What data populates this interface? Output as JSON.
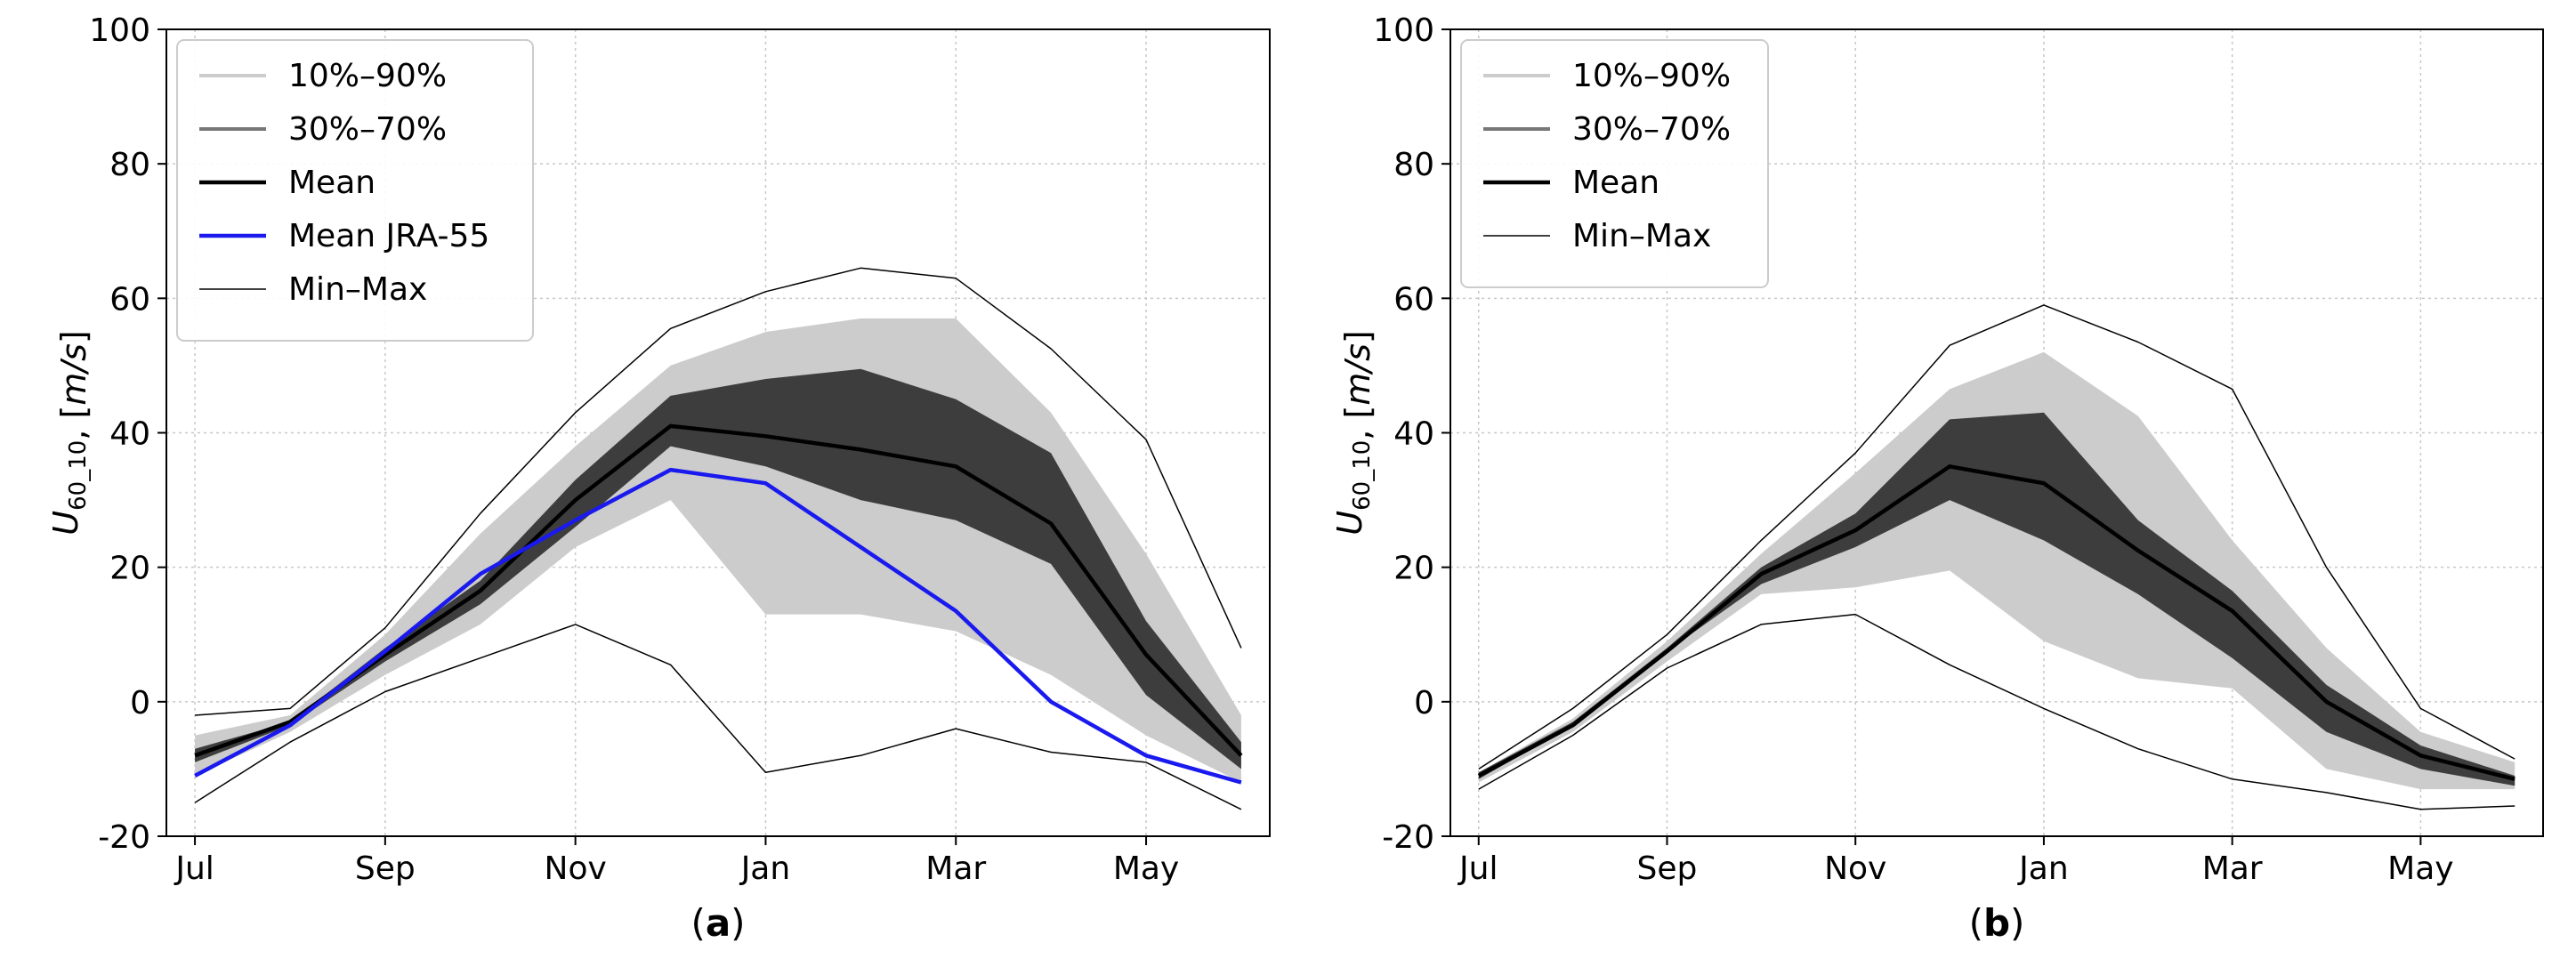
{
  "chart_data": [
    {
      "type": "line",
      "panel_label": "(a)",
      "panel_letter": "a",
      "ylabel_base": "U",
      "ylabel_sub": "60_10",
      "ylabel_unit": ", [m/s]",
      "xlabel": "",
      "ylim": [
        -20,
        100
      ],
      "yticks": [
        -20,
        0,
        20,
        40,
        60,
        80,
        100
      ],
      "xtick_labels": [
        "Jul",
        "Sep",
        "Nov",
        "Jan",
        "Mar",
        "May"
      ],
      "xtick_positions": [
        0,
        2,
        4,
        6,
        8,
        10
      ],
      "x": [
        0,
        1,
        2,
        3,
        4,
        5,
        6,
        7,
        8,
        9,
        10,
        11
      ],
      "grid": true,
      "legend_position": "top-left",
      "legend": [
        "10%–90%",
        "30%–70%",
        "Mean",
        "Mean JRA-55",
        "Min–Max"
      ],
      "series": [
        {
          "name": "Min–Max (max)",
          "values": [
            -2,
            -1,
            11,
            28,
            43,
            55.5,
            61,
            64.5,
            63,
            52.5,
            39,
            8
          ]
        },
        {
          "name": "Min–Max (min)",
          "values": [
            -15,
            -6,
            1.5,
            6.5,
            11.5,
            5.5,
            -10.5,
            -8,
            -4,
            -7.5,
            -9,
            -16
          ]
        },
        {
          "name": "10%–90% (upper)",
          "values": [
            -5,
            -2,
            10,
            25,
            38,
            50,
            55,
            57,
            57,
            43,
            22,
            -2
          ]
        },
        {
          "name": "10%–90% (lower)",
          "values": [
            -11,
            -4.5,
            4,
            11.5,
            23,
            30,
            13,
            13,
            10.5,
            4,
            -5,
            -12
          ]
        },
        {
          "name": "30%–70% (upper)",
          "values": [
            -7,
            -3,
            8,
            18,
            33,
            45.5,
            48,
            49.5,
            45,
            37,
            12,
            -6
          ]
        },
        {
          "name": "30%–70% (lower)",
          "values": [
            -9,
            -3.5,
            6,
            14.5,
            26,
            38,
            35,
            30,
            27,
            20.5,
            1,
            -10
          ]
        },
        {
          "name": "Mean",
          "values": [
            -8,
            -3,
            7,
            16.5,
            30,
            41,
            39.5,
            37.5,
            35,
            26.5,
            7,
            -8
          ]
        },
        {
          "name": "Mean JRA-55",
          "values": [
            -11,
            -3.5,
            7.5,
            19,
            27,
            34.5,
            32.5,
            23,
            13.5,
            0,
            -8,
            -12
          ]
        }
      ]
    },
    {
      "type": "line",
      "panel_label": "(b)",
      "panel_letter": "b",
      "ylabel_base": "U",
      "ylabel_sub": "60_10",
      "ylabel_unit": ", [m/s]",
      "xlabel": "",
      "ylim": [
        -20,
        100
      ],
      "yticks": [
        -20,
        0,
        20,
        40,
        60,
        80,
        100
      ],
      "xtick_labels": [
        "Jul",
        "Sep",
        "Nov",
        "Jan",
        "Mar",
        "May"
      ],
      "xtick_positions": [
        0,
        2,
        4,
        6,
        8,
        10
      ],
      "x": [
        0,
        1,
        2,
        3,
        4,
        5,
        6,
        7,
        8,
        9,
        10,
        11
      ],
      "grid": true,
      "legend_position": "top-left",
      "legend": [
        "10%–90%",
        "30%–70%",
        "Mean",
        "Min–Max"
      ],
      "series": [
        {
          "name": "Min–Max (max)",
          "values": [
            -10,
            -1,
            10,
            24,
            37,
            53,
            59,
            53.5,
            46.5,
            20,
            -1,
            -8.5
          ]
        },
        {
          "name": "Min–Max (min)",
          "values": [
            -13,
            -5,
            5,
            11.5,
            13,
            5.5,
            -1,
            -7,
            -11.5,
            -13.5,
            -16,
            -15.5
          ]
        },
        {
          "name": "10%–90% (upper)",
          "values": [
            -10.5,
            -2.5,
            9,
            22,
            34,
            46.5,
            52,
            42.5,
            24,
            8,
            -4.5,
            -9
          ]
        },
        {
          "name": "10%–90% (lower)",
          "values": [
            -12,
            -4.5,
            6,
            16,
            17,
            19.5,
            9,
            3.5,
            2,
            -10,
            -13,
            -13
          ]
        },
        {
          "name": "30%–70% (upper)",
          "values": [
            -10.5,
            -3,
            8,
            20,
            28,
            42,
            43,
            27,
            16.5,
            2.5,
            -6.5,
            -11
          ]
        },
        {
          "name": "30%–70% (lower)",
          "values": [
            -11.5,
            -3.5,
            7.5,
            17.5,
            23,
            30,
            24,
            16,
            6.5,
            -4.5,
            -10,
            -12.5
          ]
        },
        {
          "name": "Mean",
          "values": [
            -11,
            -3.5,
            7.5,
            19,
            25.5,
            35,
            32.5,
            22.5,
            13.5,
            0,
            -8,
            -11.5
          ]
        }
      ]
    }
  ]
}
